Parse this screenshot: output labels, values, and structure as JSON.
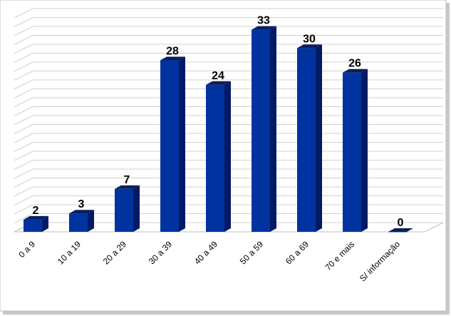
{
  "chart_data": {
    "type": "bar",
    "style": "3d-column",
    "categories": [
      "0 a 9",
      "10 a 19",
      "20 a 29",
      "30 a 39",
      "40 a 49",
      "50 a 59",
      "60 a 69",
      "70 e mais",
      "S/ informação"
    ],
    "values": [
      2,
      3,
      7,
      28,
      24,
      33,
      30,
      26,
      0
    ],
    "title": "",
    "xlabel": "",
    "ylabel": "",
    "ylim": [
      0,
      34
    ],
    "grid": true,
    "legend": "none",
    "data_labels": true,
    "colors": {
      "bar_front": "#0033A0",
      "bar_side": "#001A66",
      "bar_top": "#0B1E5C",
      "grid": "#D0D0D0",
      "frame_shadow": "#9A9A9A"
    }
  }
}
